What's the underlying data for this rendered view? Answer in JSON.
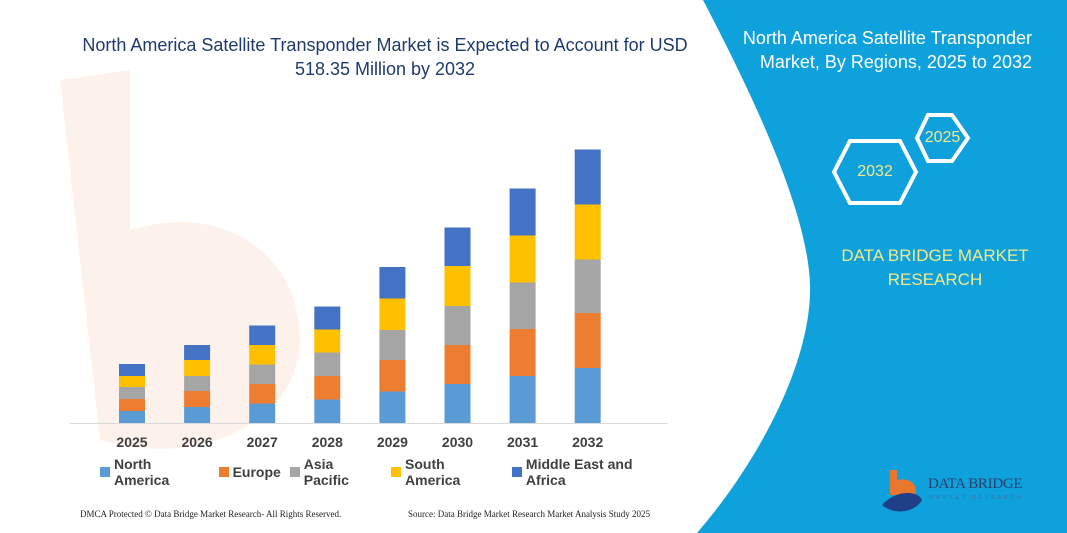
{
  "header": {
    "title": "North America Satellite Transponder Market is Expected to Account for USD 518.35 Million by 2032"
  },
  "side_panel": {
    "title": "North America Satellite Transponder Market, By Regions, 2025 to 2032",
    "hex_start": "2025",
    "hex_end": "2032",
    "brand": "DATA BRIDGE MARKET RESEARCH",
    "logo_text": "DATA BRIDGE",
    "logo_sub": "MARKET RESEARCH",
    "background_color": "#0ea1dc"
  },
  "footer": {
    "left": "DMCA Protected © Data Bridge Market Research-  All Rights Reserved.",
    "right": "Source: Data Bridge Market Research  Market Analysis Study 2025"
  },
  "chart_data": {
    "type": "bar",
    "stacked": true,
    "title": "",
    "xlabel": "",
    "ylabel": "",
    "grid": false,
    "legend_position": "bottom",
    "categories": [
      "2025",
      "2026",
      "2027",
      "2028",
      "2029",
      "2030",
      "2031",
      "2032"
    ],
    "series": [
      {
        "name": "North America",
        "color": "#5b9bd5",
        "values": [
          12,
          16,
          19.5,
          23.5,
          31.5,
          39,
          47,
          55
        ]
      },
      {
        "name": "Europe",
        "color": "#ed7d31",
        "values": [
          12,
          16,
          19.5,
          23.5,
          31.5,
          39,
          47,
          55
        ]
      },
      {
        "name": "Asia Pacific",
        "color": "#a5a5a5",
        "values": [
          12,
          15,
          19.5,
          23.5,
          30,
          39,
          46.5,
          53.5
        ]
      },
      {
        "name": "South America",
        "color": "#ffc000",
        "values": [
          11,
          16,
          19.5,
          23,
          31.5,
          40,
          47,
          55
        ]
      },
      {
        "name": "Middle East and Africa",
        "color": "#4472c4",
        "values": [
          12,
          15,
          19.5,
          23,
          31.5,
          38.5,
          47,
          55
        ]
      }
    ]
  }
}
